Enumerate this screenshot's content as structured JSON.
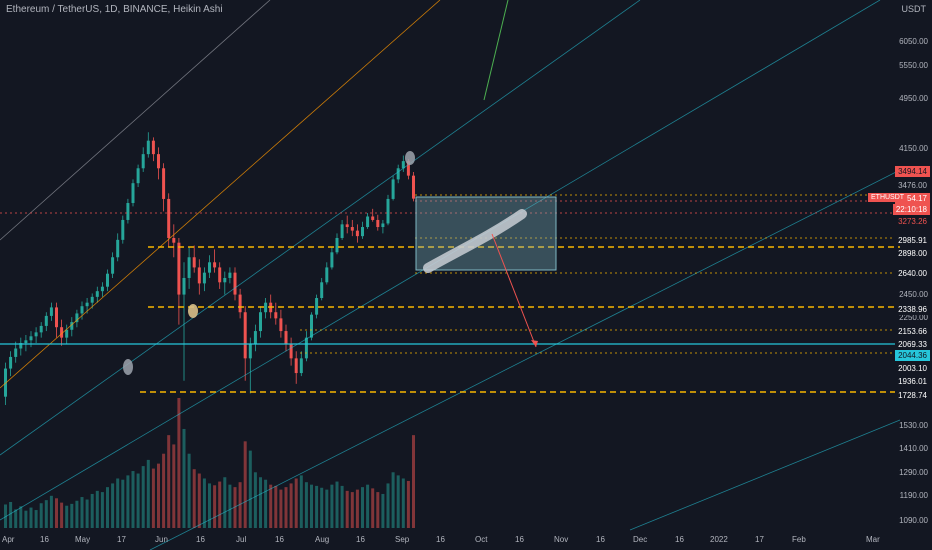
{
  "header": {
    "title": "Ethereum / TetherUS, 1D, BINANCE, Heikin Ashi",
    "currency": "USDT"
  },
  "price_axis": {
    "labels": [
      "6050.00",
      "5550.00",
      "4950.00",
      "4150.00",
      "2450.00",
      "2250.00",
      "1530.00",
      "1410.00",
      "1290.00",
      "1190.00",
      "1090.00"
    ]
  },
  "badges": [
    {
      "text": "3494.14",
      "bg": "#ef5350",
      "fg": "#131722"
    },
    {
      "text": "3476.00",
      "bg": "#131722",
      "fg": "#b2b5be"
    },
    {
      "text": "3454.17",
      "bg": "#ef5350",
      "fg": "#ffffff"
    },
    {
      "text": "22:10:18",
      "bg": "#ef5350",
      "fg": "#ffffff"
    },
    {
      "text": "3273.26",
      "bg": "#131722",
      "fg": "#ef5350"
    },
    {
      "text": "2985.91",
      "bg": "#131722",
      "fg": "#ffffff"
    },
    {
      "text": "2898.00",
      "bg": "#131722",
      "fg": "#ffffff"
    },
    {
      "text": "2640.00",
      "bg": "#131722",
      "fg": "#ffffff"
    },
    {
      "text": "2338.96",
      "bg": "#131722",
      "fg": "#ffffff"
    },
    {
      "text": "2153.66",
      "bg": "#131722",
      "fg": "#ffffff"
    },
    {
      "text": "2069.33",
      "bg": "#131722",
      "fg": "#ffffff"
    },
    {
      "text": "2044.36",
      "bg": "#26c6da",
      "fg": "#131722"
    },
    {
      "text": "2003.10",
      "bg": "#131722",
      "fg": "#ffffff"
    },
    {
      "text": "1936.01",
      "bg": "#131722",
      "fg": "#ffffff"
    },
    {
      "text": "1728.74",
      "bg": "#131722",
      "fg": "#ffffff"
    }
  ],
  "symbol_tag": {
    "text": "ETHUSDT",
    "bg": "#ef5350"
  },
  "date_axis": {
    "labels": [
      "Apr",
      "16",
      "May",
      "17",
      "Jun",
      "16",
      "Jul",
      "16",
      "Aug",
      "16",
      "Sep",
      "16",
      "Oct",
      "16",
      "Nov",
      "16",
      "Dec",
      "16",
      "2022",
      "17",
      "Feb",
      "Mar"
    ]
  },
  "colors": {
    "up": "#26a69a",
    "down": "#ef5350",
    "level": "#f7b500",
    "cyan": "#26c6da",
    "box": "#7fb8c4"
  },
  "chart_data": {
    "type": "candlestick",
    "series": [
      {
        "name": "ETHUSDT",
        "ohlc": [
          [
            1700,
            1920,
            1650,
            1880
          ],
          [
            1880,
            2000,
            1830,
            1960
          ],
          [
            1960,
            2070,
            1920,
            2020
          ],
          [
            2020,
            2100,
            1970,
            2060
          ],
          [
            2060,
            2120,
            2000,
            2080
          ],
          [
            2080,
            2150,
            2030,
            2110
          ],
          [
            2110,
            2180,
            2060,
            2140
          ],
          [
            2140,
            2220,
            2100,
            2190
          ],
          [
            2190,
            2300,
            2150,
            2270
          ],
          [
            2270,
            2380,
            2230,
            2340
          ],
          [
            2340,
            2380,
            2100,
            2180
          ],
          [
            2180,
            2240,
            2040,
            2100
          ],
          [
            2100,
            2200,
            2050,
            2160
          ],
          [
            2160,
            2260,
            2110,
            2220
          ],
          [
            2220,
            2320,
            2180,
            2290
          ],
          [
            2290,
            2390,
            2240,
            2350
          ],
          [
            2350,
            2420,
            2290,
            2380
          ],
          [
            2380,
            2460,
            2330,
            2430
          ],
          [
            2430,
            2520,
            2380,
            2480
          ],
          [
            2480,
            2560,
            2430,
            2520
          ],
          [
            2520,
            2680,
            2480,
            2640
          ],
          [
            2640,
            2850,
            2600,
            2800
          ],
          [
            2800,
            3050,
            2760,
            2980
          ],
          [
            2980,
            3250,
            2940,
            3200
          ],
          [
            3200,
            3450,
            3160,
            3400
          ],
          [
            3400,
            3700,
            3360,
            3650
          ],
          [
            3650,
            3900,
            3600,
            3850
          ],
          [
            3850,
            4150,
            3800,
            4050
          ],
          [
            4050,
            4380,
            4000,
            4250
          ],
          [
            4250,
            4300,
            3950,
            4050
          ],
          [
            4050,
            4150,
            3700,
            3850
          ],
          [
            3850,
            3920,
            3300,
            3450
          ],
          [
            3450,
            3520,
            2900,
            3000
          ],
          [
            3000,
            3150,
            2800,
            2950
          ],
          [
            2950,
            3000,
            2200,
            2450
          ],
          [
            2450,
            2750,
            1800,
            2600
          ],
          [
            2600,
            2900,
            2500,
            2800
          ],
          [
            2800,
            2920,
            2650,
            2700
          ],
          [
            2700,
            2780,
            2450,
            2550
          ],
          [
            2550,
            2700,
            2480,
            2650
          ],
          [
            2650,
            2820,
            2600,
            2750
          ],
          [
            2750,
            2880,
            2650,
            2700
          ],
          [
            2700,
            2750,
            2500,
            2560
          ],
          [
            2560,
            2660,
            2450,
            2600
          ],
          [
            2600,
            2700,
            2550,
            2650
          ],
          [
            2650,
            2700,
            2400,
            2450
          ],
          [
            2450,
            2500,
            2250,
            2300
          ],
          [
            2300,
            2350,
            1800,
            1950
          ],
          [
            1950,
            2100,
            1720,
            2050
          ],
          [
            2050,
            2200,
            2000,
            2150
          ],
          [
            2150,
            2350,
            2100,
            2300
          ],
          [
            2300,
            2420,
            2250,
            2380
          ],
          [
            2380,
            2450,
            2250,
            2300
          ],
          [
            2300,
            2380,
            2200,
            2250
          ],
          [
            2250,
            2320,
            2100,
            2150
          ],
          [
            2150,
            2200,
            2000,
            2050
          ],
          [
            2050,
            2100,
            1900,
            1950
          ],
          [
            1950,
            2000,
            1780,
            1850
          ],
          [
            1850,
            2000,
            1830,
            1950
          ],
          [
            1950,
            2150,
            1930,
            2100
          ],
          [
            2100,
            2300,
            2080,
            2280
          ],
          [
            2280,
            2450,
            2250,
            2420
          ],
          [
            2420,
            2600,
            2400,
            2560
          ],
          [
            2560,
            2750,
            2540,
            2700
          ],
          [
            2700,
            2900,
            2680,
            2850
          ],
          [
            2850,
            3050,
            2830,
            3000
          ],
          [
            3000,
            3200,
            2980,
            3150
          ],
          [
            3150,
            3250,
            3050,
            3120
          ],
          [
            3120,
            3200,
            3020,
            3080
          ],
          [
            3080,
            3150,
            2950,
            3020
          ],
          [
            3020,
            3180,
            2990,
            3120
          ],
          [
            3120,
            3280,
            3100,
            3240
          ],
          [
            3240,
            3330,
            3180,
            3200
          ],
          [
            3200,
            3260,
            3080,
            3120
          ],
          [
            3120,
            3200,
            3050,
            3160
          ],
          [
            3160,
            3500,
            3140,
            3450
          ],
          [
            3450,
            3750,
            3430,
            3700
          ],
          [
            3700,
            3900,
            3650,
            3850
          ],
          [
            3850,
            4030,
            3800,
            3950
          ],
          [
            3950,
            3980,
            3700,
            3750
          ],
          [
            3750,
            3800,
            3420,
            3454
          ]
        ]
      }
    ],
    "volume": [
      38,
      42,
      30,
      35,
      28,
      33,
      29,
      40,
      45,
      52,
      48,
      41,
      36,
      39,
      44,
      50,
      46,
      55,
      60,
      58,
      66,
      72,
      80,
      78,
      85,
      92,
      88,
      100,
      110,
      96,
      104,
      120,
      150,
      135,
      210,
      160,
      120,
      95,
      88,
      80,
      72,
      69,
      75,
      82,
      70,
      66,
      74,
      140,
      125,
      90,
      82,
      78,
      70,
      68,
      62,
      66,
      72,
      80,
      85,
      74,
      70,
      68,
      65,
      62,
      70,
      75,
      68,
      60,
      58,
      62,
      66,
      70,
      64,
      58,
      55,
      72,
      90,
      85,
      80,
      76,
      150
    ],
    "ylim": [
      1060,
      6700
    ]
  }
}
